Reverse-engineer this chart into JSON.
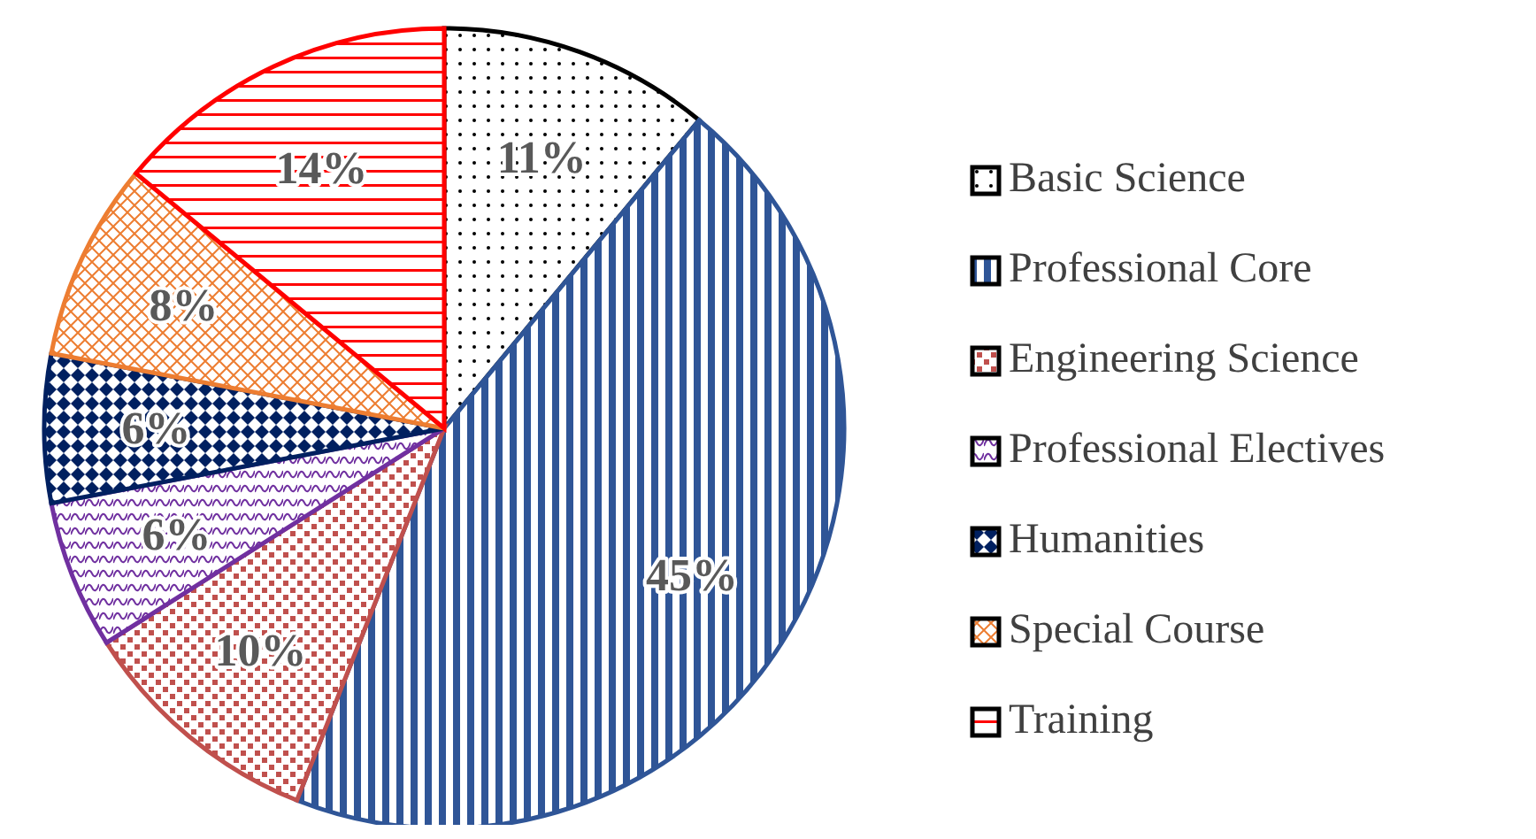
{
  "chart_data": {
    "type": "pie",
    "categories": [
      "Basic Science",
      "Professional Core",
      "Engineering Science",
      "Professional Electives",
      "Humanities",
      "Special Course",
      "Training"
    ],
    "values": [
      11,
      45,
      10,
      6,
      6,
      8,
      14
    ],
    "colors": [
      "#000000",
      "#2f5597",
      "#c0504d",
      "#7030a0",
      "#002060",
      "#ed7d31",
      "#ff0000"
    ],
    "value_labels": [
      "11%",
      "45%",
      "10%",
      "6%",
      "6%",
      "8%",
      "14%"
    ],
    "legend": "right"
  }
}
